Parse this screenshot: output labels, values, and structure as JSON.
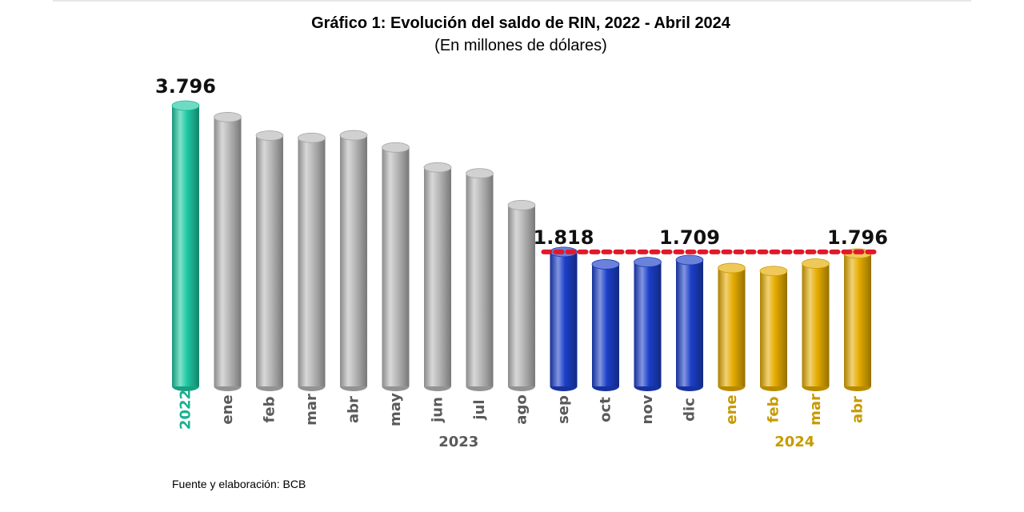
{
  "chart_data": {
    "type": "bar",
    "title": "Gráfico 1: Evolución del saldo de RIN, 2022 - Abril 2024",
    "subtitle": "(En millones de dólares)",
    "source": "Fuente y elaboración: BCB",
    "categories": [
      "2022",
      "ene",
      "feb",
      "mar",
      "abr",
      "may",
      "jun",
      "jul",
      "ago",
      "sep",
      "oct",
      "nov",
      "dic",
      "ene",
      "feb",
      "mar",
      "abr"
    ],
    "values": [
      3796,
      3640,
      3390,
      3360,
      3395,
      3230,
      2960,
      2880,
      2450,
      1818,
      1650,
      1680,
      1709,
      1600,
      1560,
      1660,
      1796
    ],
    "groups": [
      {
        "name": "2022",
        "from": 0,
        "to": 0
      },
      {
        "name": "2023",
        "from": 1,
        "to": 12
      },
      {
        "name": "2024",
        "from": 13,
        "to": 16
      }
    ],
    "data_labels": [
      {
        "index": 0,
        "text": "3.796"
      },
      {
        "index": 9,
        "text": "1.818"
      },
      {
        "index": 12,
        "text": "1.709"
      },
      {
        "index": 16,
        "text": "1.796"
      }
    ],
    "reference_line": {
      "value": 1818,
      "from": 9,
      "to": 16,
      "color": "#e0192a",
      "style": "dotted"
    },
    "ylim": [
      0,
      4000
    ],
    "colors": {
      "teal": "#1ec9a3",
      "silver": "#b8b8b8",
      "blue": "#1b3fc8",
      "gold": "#e5ac00",
      "label_2022": "#1ab08f",
      "label_2023": "#5a5a5a",
      "label_2024": "#c79a00"
    }
  }
}
